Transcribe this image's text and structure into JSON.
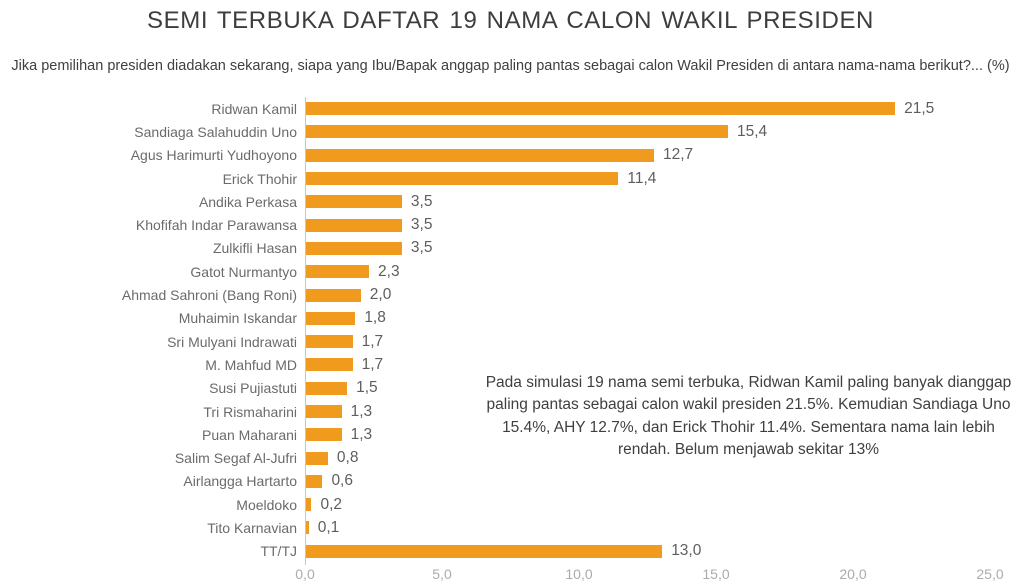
{
  "header": {
    "title": "SEMI TERBUKA DAFTAR 19 NAMA CALON WAKIL PRESIDEN",
    "subtitle": "Jika pemilihan presiden diadakan sekarang, siapa yang Ibu/Bapak anggap paling pantas sebagai calon Wakil Presiden di antara nama-nama berikut?... (%)"
  },
  "chart_data": {
    "type": "bar",
    "orientation": "horizontal",
    "title": "SEMI TERBUKA DAFTAR 19 NAMA CALON WAKIL PRESIDEN",
    "xlabel": "",
    "ylabel": "",
    "xlim": [
      0,
      25
    ],
    "grid": false,
    "legend": "none",
    "bar_color": "#f09a1e",
    "decimal_separator": ",",
    "categories": [
      "Ridwan Kamil",
      "Sandiaga Salahuddin Uno",
      "Agus Harimurti Yudhoyono",
      "Erick Thohir",
      "Andika Perkasa",
      "Khofifah Indar Parawansa",
      "Zulkifli Hasan",
      "Gatot Nurmantyo",
      "Ahmad Sahroni (Bang Roni)",
      "Muhaimin Iskandar",
      "Sri Mulyani Indrawati",
      "M. Mahfud MD",
      "Susi Pujiastuti",
      "Tri Rismaharini",
      "Puan Maharani",
      "Salim Segaf Al-Jufri",
      "Airlangga Hartarto",
      "Moeldoko",
      "Tito Karnavian",
      "TT/TJ"
    ],
    "values": [
      21.5,
      15.4,
      12.7,
      11.4,
      3.5,
      3.5,
      3.5,
      2.3,
      2.0,
      1.8,
      1.7,
      1.7,
      1.5,
      1.3,
      1.3,
      0.8,
      0.6,
      0.2,
      0.1,
      13.0
    ],
    "value_labels": [
      "21,5",
      "15,4",
      "12,7",
      "11,4",
      "3,5",
      "3,5",
      "3,5",
      "2,3",
      "2,0",
      "1,8",
      "1,7",
      "1,7",
      "1,5",
      "1,3",
      "1,3",
      "0,8",
      "0,6",
      "0,2",
      "0,1",
      "13,0"
    ],
    "x_ticks": [
      0,
      5,
      10,
      15,
      20,
      25
    ],
    "x_tick_labels": [
      "0,0",
      "5,0",
      "10,0",
      "15,0",
      "20,0",
      "25,0"
    ]
  },
  "annotation": {
    "text": "Pada simulasi 19 nama semi terbuka, Ridwan Kamil paling banyak dianggap paling pantas sebagai calon wakil presiden 21.5%. Kemudian Sandiaga Uno 15.4%, AHY 12.7%, dan Erick Thohir 11.4%. Sementara nama lain lebih rendah. Belum menjawab sekitar 13%"
  }
}
